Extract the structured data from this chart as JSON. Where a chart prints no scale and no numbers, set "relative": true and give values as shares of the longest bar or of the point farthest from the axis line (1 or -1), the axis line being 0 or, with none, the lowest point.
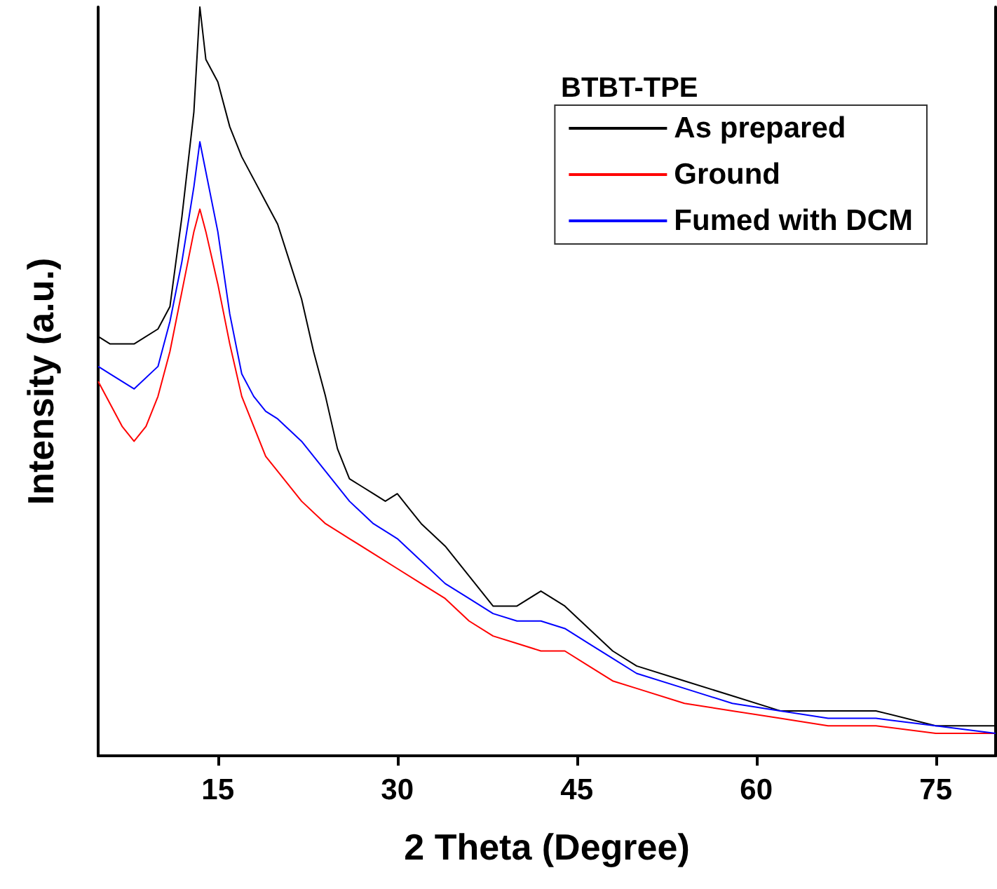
{
  "chart_data": {
    "type": "line",
    "relative": true,
    "xlabel": "2 Theta (Degree)",
    "ylabel": "Intensity (a.u.)",
    "legend_title": "BTBT-TPE",
    "legend": "top right",
    "grid": false,
    "marker": "none",
    "line_style": "solid",
    "xlim": [
      5,
      80
    ],
    "xticks": [
      15,
      30,
      45,
      60,
      75
    ],
    "x": [
      5,
      6,
      8,
      10,
      11,
      12,
      13,
      13.5,
      14,
      15,
      16,
      17,
      18,
      19,
      20,
      21,
      22,
      23,
      24,
      25,
      26,
      27,
      28,
      29,
      30,
      31,
      32,
      34,
      36,
      38,
      40,
      42,
      44,
      46,
      48,
      50,
      54,
      58,
      62,
      66,
      70,
      75,
      80
    ],
    "series": [
      {
        "name": "As prepared",
        "color": "#000000",
        "values": [
          0.56,
          0.55,
          0.55,
          0.57,
          0.6,
          0.72,
          0.86,
          1.0,
          0.93,
          0.9,
          0.84,
          0.8,
          0.77,
          0.74,
          0.71,
          0.66,
          0.61,
          0.54,
          0.48,
          0.41,
          0.37,
          0.36,
          0.35,
          0.34,
          0.35,
          0.33,
          0.31,
          0.28,
          0.24,
          0.2,
          0.2,
          0.22,
          0.2,
          0.17,
          0.14,
          0.12,
          0.1,
          0.08,
          0.06,
          0.06,
          0.06,
          0.04,
          0.04
        ]
      },
      {
        "name": "Ground",
        "color": "#ff0000",
        "x": [
          5,
          6,
          7,
          8,
          9,
          10,
          11,
          12,
          13,
          13.5,
          14,
          15,
          16,
          17,
          18,
          19,
          20,
          22,
          24,
          26,
          28,
          30,
          32,
          34,
          36,
          38,
          40,
          42,
          44,
          46,
          48,
          50,
          54,
          58,
          62,
          66,
          70,
          75,
          80
        ],
        "values": [
          0.5,
          0.47,
          0.44,
          0.42,
          0.44,
          0.48,
          0.54,
          0.62,
          0.7,
          0.73,
          0.7,
          0.63,
          0.55,
          0.48,
          0.44,
          0.4,
          0.38,
          0.34,
          0.31,
          0.29,
          0.27,
          0.25,
          0.23,
          0.21,
          0.18,
          0.16,
          0.15,
          0.14,
          0.14,
          0.12,
          0.1,
          0.09,
          0.07,
          0.06,
          0.05,
          0.04,
          0.04,
          0.03,
          0.03
        ]
      },
      {
        "name": "Fumed with DCM",
        "color": "#0000ff",
        "x": [
          5,
          6,
          8,
          10,
          11,
          12,
          13,
          13.5,
          14,
          15,
          16,
          17,
          18,
          19,
          20,
          22,
          24,
          26,
          28,
          30,
          32,
          34,
          36,
          38,
          40,
          42,
          44,
          46,
          48,
          50,
          54,
          58,
          62,
          66,
          70,
          75,
          80
        ],
        "values": [
          0.52,
          0.51,
          0.49,
          0.52,
          0.58,
          0.66,
          0.76,
          0.82,
          0.78,
          0.7,
          0.59,
          0.51,
          0.48,
          0.46,
          0.45,
          0.42,
          0.38,
          0.34,
          0.31,
          0.29,
          0.26,
          0.23,
          0.21,
          0.19,
          0.18,
          0.18,
          0.17,
          0.15,
          0.13,
          0.11,
          0.09,
          0.07,
          0.06,
          0.05,
          0.05,
          0.04,
          0.03
        ]
      }
    ]
  }
}
